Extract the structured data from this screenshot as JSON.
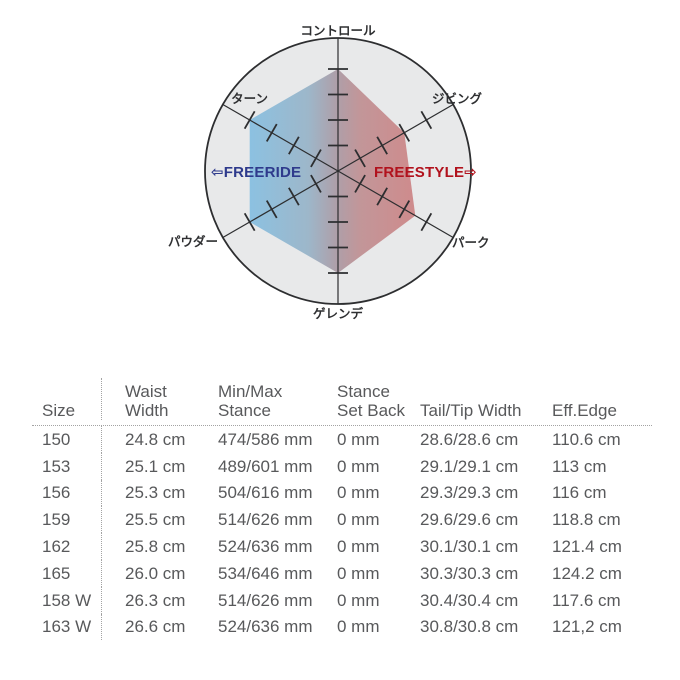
{
  "chart_data": {
    "type": "radar",
    "title": "Snowboard character radar (FREERIDE vs FREESTYLE)",
    "scale_max": 5,
    "tick_levels": [
      1,
      2,
      3,
      4
    ],
    "axes": [
      {
        "label": "コントロール",
        "angle_deg": 90,
        "value": 4
      },
      {
        "label": "ジビング",
        "angle_deg": 30,
        "value": 3
      },
      {
        "label": "パーク",
        "angle_deg": -30,
        "value": 3.5
      },
      {
        "label": "ゲレンデ",
        "angle_deg": -90,
        "value": 4
      },
      {
        "label": "パウダー",
        "angle_deg": -150,
        "value": 4
      },
      {
        "label": "ターン",
        "angle_deg": 150,
        "value": 4
      }
    ],
    "center_labels": {
      "left": {
        "arrow": "⇦",
        "label": "FREERIDE"
      },
      "right": {
        "label": "FREESTYLE",
        "arrow": "⇨"
      }
    },
    "colors": {
      "freeride_text": "#2e3a8c",
      "freestyle_text": "#b1121d",
      "circle_fill": "#e8e9ea",
      "line": "#2d2e30",
      "gradient": [
        "#8cc1e1",
        "#9db7ca",
        "#ae9fa9",
        "#c29699",
        "#cf8b8c"
      ]
    }
  },
  "table": {
    "headers": {
      "size": "Size",
      "waist_1": "Waist",
      "waist_2": "Width",
      "stance_1": "Min/Max",
      "stance_2": "Stance",
      "setback_1": "Stance",
      "setback_2": "Set Back",
      "tailtip": "Tail/Tip Width",
      "edge": "Eff.Edge"
    },
    "rows": [
      {
        "size": "150",
        "waist": "24.8 cm",
        "stance": "474/586 mm",
        "setback": "0 mm",
        "tailtip": "28.6/28.6 cm",
        "edge": "110.6 cm"
      },
      {
        "size": "153",
        "waist": "25.1 cm",
        "stance": "489/601 mm",
        "setback": "0 mm",
        "tailtip": "29.1/29.1 cm",
        "edge": "113 cm"
      },
      {
        "size": "156",
        "waist": "25.3 cm",
        "stance": "504/616 mm",
        "setback": "0 mm",
        "tailtip": "29.3/29.3 cm",
        "edge": "116 cm"
      },
      {
        "size": "159",
        "waist": "25.5 cm",
        "stance": "514/626 mm",
        "setback": "0 mm",
        "tailtip": "29.6/29.6 cm",
        "edge": "118.8 cm"
      },
      {
        "size": "162",
        "waist": "25.8 cm",
        "stance": "524/636 mm",
        "setback": "0 mm",
        "tailtip": "30.1/30.1 cm",
        "edge": "121.4 cm"
      },
      {
        "size": "165",
        "waist": "26.0 cm",
        "stance": "534/646 mm",
        "setback": "0 mm",
        "tailtip": "30.3/30.3 cm",
        "edge": "124.2 cm"
      },
      {
        "size": "158 W",
        "waist": "26.3 cm",
        "stance": "514/626 mm",
        "setback": "0 mm",
        "tailtip": "30.4/30.4 cm",
        "edge": "117.6 cm"
      },
      {
        "size": "163 W",
        "waist": "26.6 cm",
        "stance": "524/636 mm",
        "setback": "0 mm",
        "tailtip": "30.8/30.8 cm",
        "edge": "121,2 cm"
      }
    ]
  }
}
